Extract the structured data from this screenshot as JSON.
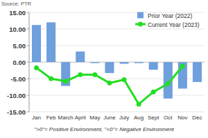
{
  "chart_data": {
    "type": "bar",
    "annotations": [
      "Source: PTR",
      "\">0\"= Positive Environment, \"<0\"= Negative Environment"
    ],
    "categories": [
      "Jan",
      "Feb",
      "March",
      "April",
      "May",
      "June",
      "July",
      "Aug",
      "Sept",
      "Oct",
      "Nov",
      "Dec"
    ],
    "series": [
      {
        "name": "Prior Year (2022)",
        "type": "bar",
        "color": "#6f9fdc",
        "values": [
          11.2,
          12.0,
          -7.2,
          3.2,
          -0.3,
          -3.3,
          -0.5,
          -0.3,
          -2.3,
          -11.0,
          -8.0,
          -6.0
        ]
      },
      {
        "name": "Current Year (2023)",
        "type": "line",
        "color": "#22dd22",
        "marker": "circle",
        "values": [
          -1.7,
          -5.0,
          -5.8,
          -3.8,
          -3.8,
          -6.3,
          -5.3,
          -12.7,
          -9.0,
          -6.5,
          -1.2,
          null
        ]
      }
    ],
    "ylim": [
      -15,
      15
    ],
    "yticks": [
      {
        "value": -15,
        "label": "-15.00"
      },
      {
        "value": -10,
        "label": "-10.00"
      },
      {
        "value": -5,
        "label": "-5.00"
      },
      {
        "value": 0,
        "label": "0.00"
      },
      {
        "value": 5,
        "label": "5.00"
      },
      {
        "value": 10,
        "label": "10.00"
      },
      {
        "value": 15,
        "label": "15.00"
      }
    ],
    "grid": true,
    "legend": "upper right"
  }
}
